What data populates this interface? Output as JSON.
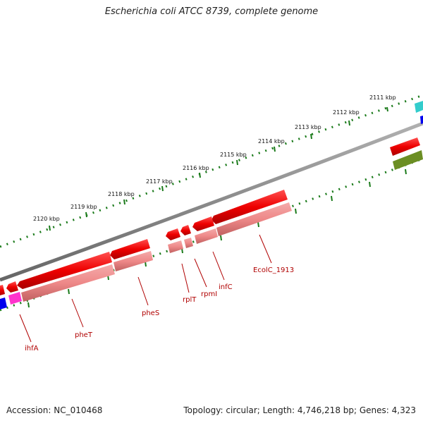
{
  "title": "Escherichia coli ATCC 8739, complete genome",
  "footer": {
    "accession": "Accession: NC_010468",
    "summary": "Topology: circular; Length: 4,746,218 bp; Genes: 4,323"
  },
  "scale_labels": [
    "2111 kbp",
    "2112 kbp",
    "2113 kbp",
    "2114 kbp",
    "2115 kbp",
    "2116 kbp",
    "2117 kbp",
    "2118 kbp",
    "2119 kbp",
    "2120 kbp"
  ],
  "gene_labels": [
    "ihfA",
    "pheT",
    "pheS",
    "rplT",
    "rpmI",
    "infC",
    "EcolC_1913"
  ],
  "colors": {
    "backbone": "#888888",
    "gene_red": "#ee0000",
    "cds_pink": "#ee8888",
    "tick_green": "#1a7a1a",
    "magenta": "#ff33cc",
    "blue": "#0000ee",
    "cyan": "#33cccc",
    "olive": "#6b8e23",
    "label_red": "#b00000"
  }
}
